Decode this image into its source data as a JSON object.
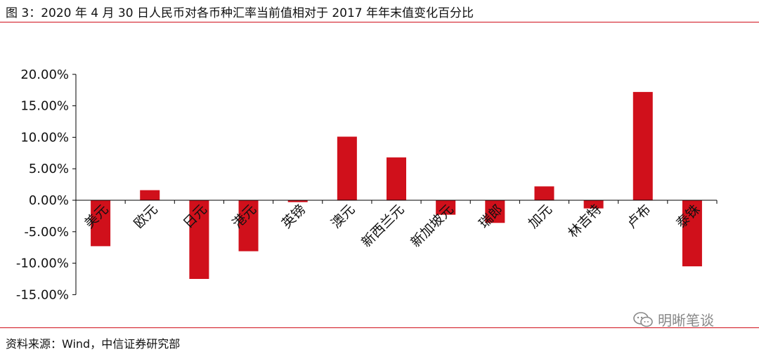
{
  "header": {
    "title": "图 3：2020 年 4 月 30 日人民币对各币种汇率当前值相对于 2017 年年末值变化百分比"
  },
  "footer": {
    "source": "资料来源：Wind，中信证券研究部",
    "watermark": "明晰笔谈"
  },
  "colors": {
    "bar": "#d0101b",
    "rule": "#d0101b"
  },
  "chart_data": {
    "type": "bar",
    "categories": [
      "美元",
      "欧元",
      "日元",
      "港元",
      "英镑",
      "澳元",
      "新西兰元",
      "新加坡元",
      "瑞郎",
      "加元",
      "林吉特",
      "卢布",
      "泰铢"
    ],
    "values": [
      -7.3,
      1.6,
      -12.5,
      -8.1,
      -0.3,
      10.1,
      6.8,
      -2.3,
      -3.6,
      2.2,
      -1.3,
      17.2,
      -10.5
    ],
    "yticks": [
      20,
      15,
      10,
      5,
      0,
      -5,
      -10,
      -15
    ],
    "ytick_labels": [
      "20.00%",
      "15.00%",
      "10.00%",
      "5.00%",
      "0.00%",
      "-5.00%",
      "-10.00%",
      "-15.00%"
    ],
    "ylim": [
      -15,
      20
    ],
    "title": "",
    "xlabel": "",
    "ylabel": "",
    "grid": false
  }
}
